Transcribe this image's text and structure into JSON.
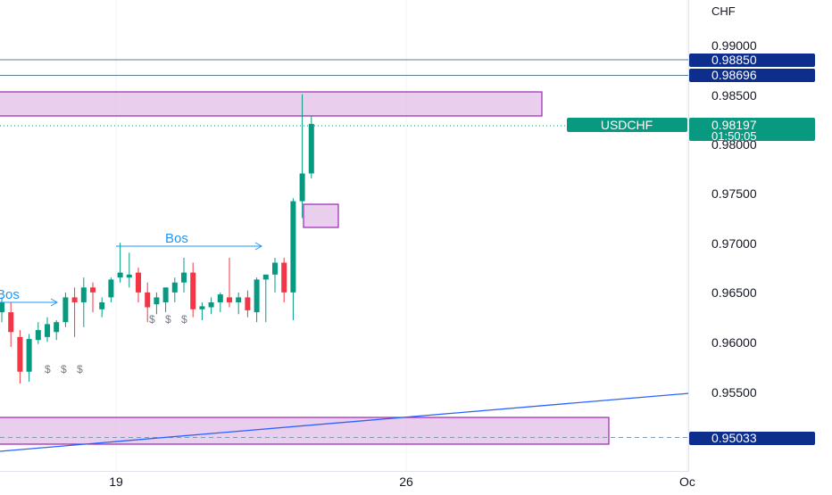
{
  "colors": {
    "up": "#089981",
    "down": "#f23645",
    "zone_fill": "#e1bee7",
    "zone_border": "#9c27b0",
    "trend_line": "#2962ff",
    "level_line": "#5b7d91",
    "bos": "#2196f3",
    "tag_blue": "#0d2e8c",
    "tag_green": "#089981",
    "axis_text": "#131722",
    "grid": "#f0f3fa"
  },
  "price_axis": {
    "currency": "CHF",
    "ticks": [
      "0.99000",
      "0.98500",
      "0.98000",
      "0.97500",
      "0.97000",
      "0.96500",
      "0.96000",
      "0.95500"
    ]
  },
  "time_axis": {
    "ticks": [
      "19",
      "26",
      "Oc"
    ]
  },
  "tags": {
    "level_high": "0.98850",
    "level_mid": "0.98696",
    "current_price": "0.98197",
    "countdown": "01:50:05",
    "symbol": "USDCHF",
    "level_low": "0.95033"
  },
  "annotations": {
    "bos_1": "Bos",
    "bos_2": "Bos",
    "dollars_1": "$ $ $",
    "dollars_2": "$ $ $"
  },
  "chart_data": {
    "type": "candlestick",
    "symbol": "USDCHF",
    "currency": "CHF",
    "ylim": [
      0.9485,
      0.9925
    ],
    "candles": [
      {
        "o": 0.963,
        "h": 0.9645,
        "l": 0.962,
        "c": 0.964
      },
      {
        "o": 0.963,
        "h": 0.964,
        "l": 0.9595,
        "c": 0.961
      },
      {
        "o": 0.9605,
        "h": 0.9612,
        "l": 0.9558,
        "c": 0.957
      },
      {
        "o": 0.957,
        "h": 0.9608,
        "l": 0.956,
        "c": 0.9603
      },
      {
        "o": 0.9602,
        "h": 0.962,
        "l": 0.9598,
        "c": 0.9612
      },
      {
        "o": 0.9605,
        "h": 0.9625,
        "l": 0.96,
        "c": 0.9618
      },
      {
        "o": 0.961,
        "h": 0.9622,
        "l": 0.9602,
        "c": 0.962
      },
      {
        "o": 0.962,
        "h": 0.965,
        "l": 0.9615,
        "c": 0.9645
      },
      {
        "o": 0.9645,
        "h": 0.9655,
        "l": 0.9605,
        "c": 0.964
      },
      {
        "o": 0.964,
        "h": 0.9665,
        "l": 0.9615,
        "c": 0.9655
      },
      {
        "o": 0.9655,
        "h": 0.966,
        "l": 0.963,
        "c": 0.965
      },
      {
        "o": 0.9633,
        "h": 0.9645,
        "l": 0.9625,
        "c": 0.964
      },
      {
        "o": 0.9645,
        "h": 0.9665,
        "l": 0.964,
        "c": 0.9663
      },
      {
        "o": 0.9665,
        "h": 0.97,
        "l": 0.966,
        "c": 0.967
      },
      {
        "o": 0.9665,
        "h": 0.969,
        "l": 0.9655,
        "c": 0.9668
      },
      {
        "o": 0.967,
        "h": 0.9675,
        "l": 0.964,
        "c": 0.965
      },
      {
        "o": 0.965,
        "h": 0.966,
        "l": 0.962,
        "c": 0.9635
      },
      {
        "o": 0.9638,
        "h": 0.965,
        "l": 0.9628,
        "c": 0.9645
      },
      {
        "o": 0.964,
        "h": 0.9655,
        "l": 0.963,
        "c": 0.9655
      },
      {
        "o": 0.965,
        "h": 0.9665,
        "l": 0.964,
        "c": 0.966
      },
      {
        "o": 0.966,
        "h": 0.9685,
        "l": 0.965,
        "c": 0.967
      },
      {
        "o": 0.967,
        "h": 0.968,
        "l": 0.9625,
        "c": 0.9633
      },
      {
        "o": 0.9633,
        "h": 0.964,
        "l": 0.9622,
        "c": 0.9636
      },
      {
        "o": 0.9635,
        "h": 0.9645,
        "l": 0.9628,
        "c": 0.964
      },
      {
        "o": 0.964,
        "h": 0.965,
        "l": 0.963,
        "c": 0.9648
      },
      {
        "o": 0.9645,
        "h": 0.9685,
        "l": 0.9635,
        "c": 0.964
      },
      {
        "o": 0.964,
        "h": 0.965,
        "l": 0.9628,
        "c": 0.9645
      },
      {
        "o": 0.9645,
        "h": 0.9652,
        "l": 0.9625,
        "c": 0.9632
      },
      {
        "o": 0.963,
        "h": 0.9665,
        "l": 0.962,
        "c": 0.9663
      },
      {
        "o": 0.9663,
        "h": 0.9668,
        "l": 0.962,
        "c": 0.9668
      },
      {
        "o": 0.9668,
        "h": 0.9685,
        "l": 0.965,
        "c": 0.968
      },
      {
        "o": 0.968,
        "h": 0.9685,
        "l": 0.964,
        "c": 0.965
      },
      {
        "o": 0.965,
        "h": 0.9745,
        "l": 0.9622,
        "c": 0.9742
      },
      {
        "o": 0.9742,
        "h": 0.985,
        "l": 0.9725,
        "c": 0.977
      },
      {
        "o": 0.977,
        "h": 0.9828,
        "l": 0.9765,
        "c": 0.982
      }
    ],
    "horizontal_levels": [
      0.9885,
      0.98696,
      0.95033
    ],
    "current_price": 0.98197,
    "zones": [
      {
        "top": 0.9852,
        "bottom": 0.9828
      },
      {
        "top": 0.974,
        "bottom": 0.9718
      },
      {
        "top": 0.953,
        "bottom": 0.9503
      }
    ],
    "annotations": [
      "Bos",
      "Bos",
      "$ $ $",
      "$ $ $"
    ],
    "x_tick_labels": [
      "19",
      "26",
      "Oc"
    ],
    "y_tick_labels": [
      "0.99000",
      "0.98500",
      "0.98000",
      "0.97500",
      "0.97000",
      "0.96500",
      "0.96000",
      "0.95500"
    ]
  }
}
